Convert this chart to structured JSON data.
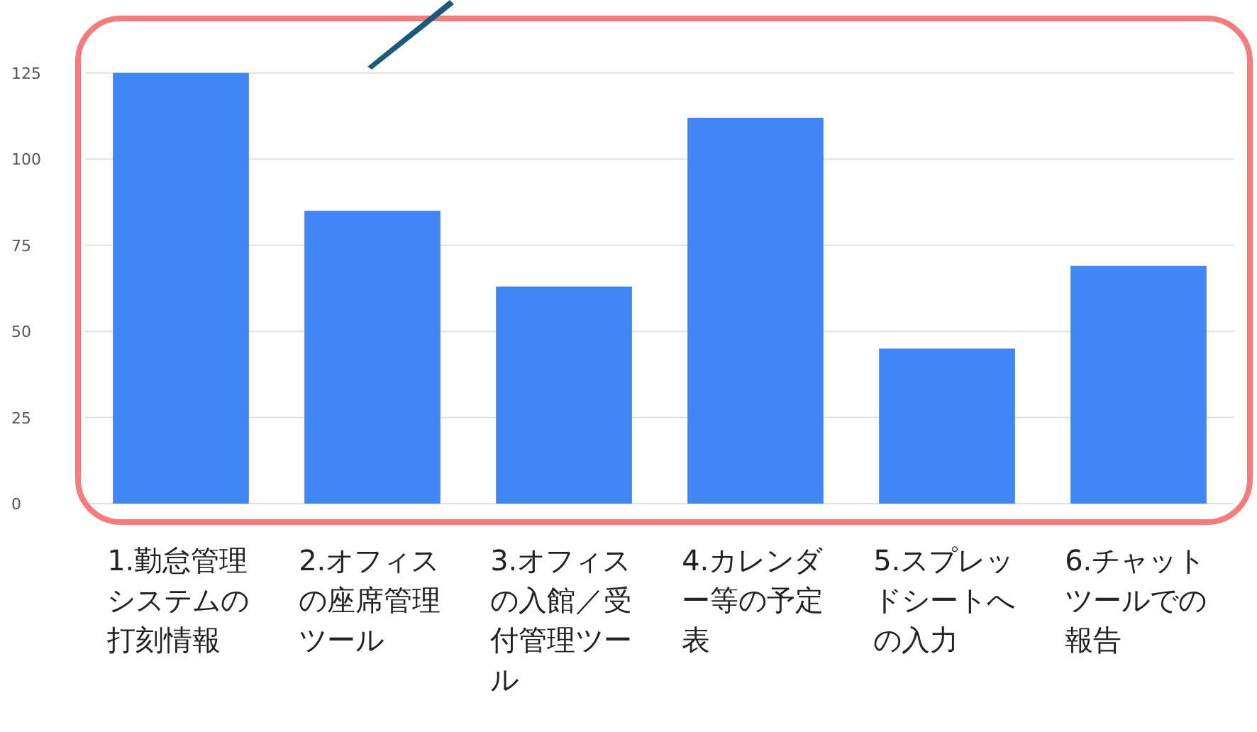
{
  "chart_data": {
    "type": "bar",
    "categories": [
      "1.勤怠管理システムの打刻情報",
      "2.オフィスの座席管理ツール",
      "3.オフィスの入館／受付管理ツール",
      "4.カレンダー等の予定表",
      "5.スプレッドシートへの入力",
      "6.チャットツールでの報告"
    ],
    "values": [
      125,
      85,
      63,
      112,
      45,
      69
    ],
    "color": "#4285f4",
    "ylim": [
      0,
      140
    ],
    "yticks": [
      0,
      25,
      50,
      75,
      100,
      125
    ],
    "grid": "y"
  }
}
